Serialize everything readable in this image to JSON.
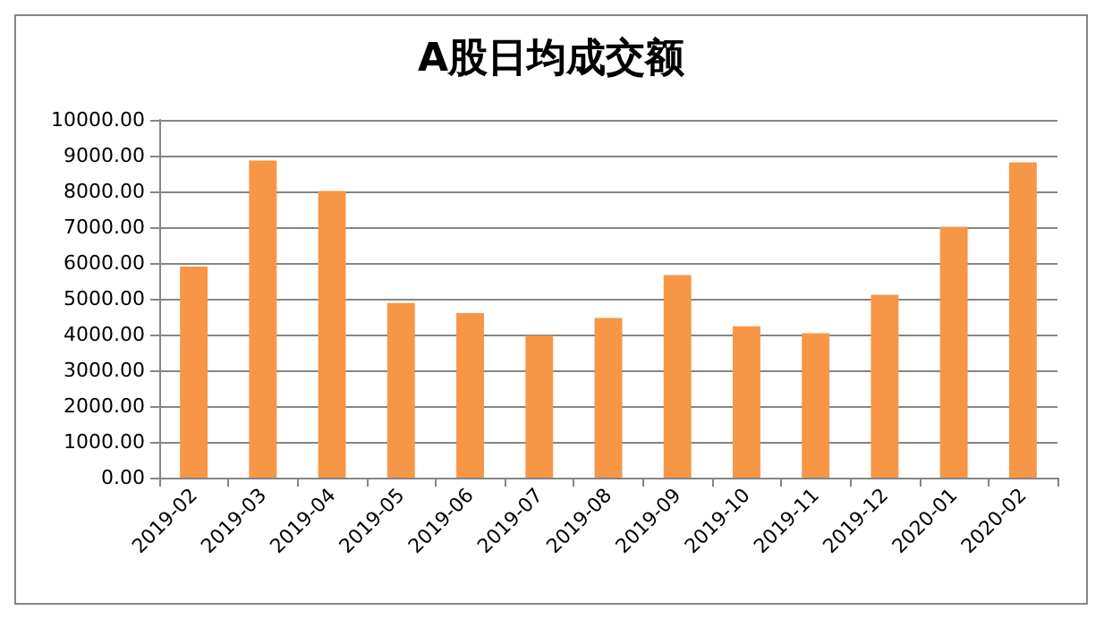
{
  "chart_data": {
    "type": "bar",
    "title": "A股日均成交额",
    "categories": [
      "2019-02",
      "2019-03",
      "2019-04",
      "2019-05",
      "2019-06",
      "2019-07",
      "2019-08",
      "2019-09",
      "2019-10",
      "2019-11",
      "2019-12",
      "2020-01",
      "2020-02"
    ],
    "values": [
      5900,
      8860,
      8010,
      4880,
      4600,
      3970,
      4460,
      5660,
      4230,
      4040,
      5110,
      7010,
      8810
    ],
    "color": "#f79646",
    "ylim": [
      0,
      10000
    ],
    "yticks": [
      {
        "value": 0,
        "label": "0.00"
      },
      {
        "value": 1000,
        "label": "1000.00"
      },
      {
        "value": 2000,
        "label": "2000.00"
      },
      {
        "value": 3000,
        "label": "3000.00"
      },
      {
        "value": 4000,
        "label": "4000.00"
      },
      {
        "value": 5000,
        "label": "5000.00"
      },
      {
        "value": 6000,
        "label": "6000.00"
      },
      {
        "value": 7000,
        "label": "7000.00"
      },
      {
        "value": 8000,
        "label": "8000.00"
      },
      {
        "value": 9000,
        "label": "9000.00"
      },
      {
        "value": 10000,
        "label": "10000.00"
      }
    ],
    "grid": "y"
  }
}
